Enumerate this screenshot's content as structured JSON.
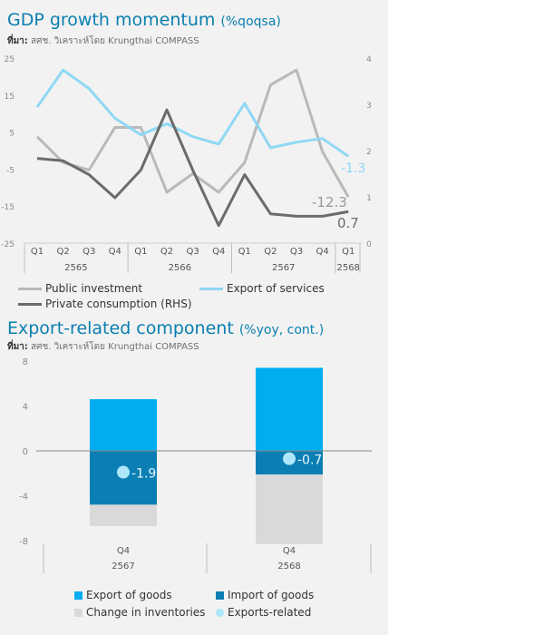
{
  "chart1": {
    "title": "GDP growth momentum",
    "title_unit": "(%qoqsa)",
    "source_label": "ที่มา:",
    "source_text": " สศช. วิเคราะห์โดย Krungthai COMPASS",
    "colors": {
      "public": "#b9b9b9",
      "export": "#8fd8f4",
      "private": "#6b6b6b"
    },
    "legend": [
      {
        "label": "Public investment",
        "color": "#b9b9b9"
      },
      {
        "label": "Export of services",
        "color": "#8fd8f4"
      },
      {
        "label": "Private consumption (RHS)",
        "color": "#6b6b6b"
      }
    ]
  },
  "chart2": {
    "title": "Export-related component",
    "title_unit": "(%yoy, cont.)",
    "source_label": "ที่มา:",
    "source_text": " สศช. วิเคราะห์โดย Krungthai COMPASS",
    "legend": [
      {
        "label": "Export of goods",
        "color": "#00aeef",
        "shape": "box"
      },
      {
        "label": "Import of goods",
        "color": "#0b7fb4",
        "shape": "box"
      },
      {
        "label": "Change in inventories",
        "color": "#d9d9d9",
        "shape": "box"
      },
      {
        "label": "Exports-related",
        "color": "#aee6fb",
        "shape": "dot"
      }
    ]
  },
  "chart_data": [
    {
      "type": "line",
      "quarters": [
        "Q1",
        "Q2",
        "Q3",
        "Q4",
        "Q1",
        "Q2",
        "Q3",
        "Q4",
        "Q1",
        "Q2",
        "Q3",
        "Q4",
        "Q1"
      ],
      "years": [
        {
          "label": "2565",
          "span": 4
        },
        {
          "label": "2566",
          "span": 4
        },
        {
          "label": "2567",
          "span": 4
        },
        {
          "label": "2568",
          "span": 1
        }
      ],
      "y_left": {
        "ticks": [
          25,
          15,
          5,
          -5,
          -15,
          -25
        ],
        "lim": [
          -25,
          25
        ]
      },
      "y_right": {
        "ticks": [
          4,
          3,
          2,
          1,
          0
        ],
        "lim": [
          0,
          4
        ]
      },
      "series": [
        {
          "name": "Public investment",
          "axis": "left",
          "values": [
            4,
            -3,
            -5,
            6.5,
            6.5,
            -11,
            -6,
            -11,
            -3,
            18,
            22,
            0,
            -12.3
          ]
        },
        {
          "name": "Export of services",
          "axis": "left",
          "values": [
            12,
            22,
            17,
            9,
            4.5,
            7.5,
            4,
            2,
            13,
            1,
            2.5,
            3.5,
            -1.3
          ]
        },
        {
          "name": "Private consumption (RHS)",
          "axis": "right",
          "values": [
            1.85,
            1.8,
            1.5,
            1.0,
            1.6,
            2.9,
            1.6,
            0.4,
            1.5,
            0.65,
            0.6,
            0.6,
            0.7
          ]
        }
      ],
      "end_labels": [
        "-1.3",
        "-12.3",
        "0.7"
      ]
    },
    {
      "type": "bar",
      "categories": [
        {
          "q": "Q4",
          "year": "2567"
        },
        {
          "q": "Q4",
          "year": "2568"
        }
      ],
      "y_ticks": [
        8,
        4,
        0,
        -4,
        -8
      ],
      "ylim": [
        -8,
        8
      ],
      "series": [
        {
          "name": "Export of goods",
          "values": [
            4.6,
            7.4
          ]
        },
        {
          "name": "Import of goods",
          "values": [
            -4.8,
            -2.1
          ]
        },
        {
          "name": "Change in inventories",
          "values": [
            -1.9,
            -6.2
          ]
        },
        {
          "name": "Exports-related",
          "values": [
            -1.9,
            -0.7
          ]
        }
      ],
      "dot_labels": [
        "-1.9",
        "-0.7"
      ]
    }
  ]
}
